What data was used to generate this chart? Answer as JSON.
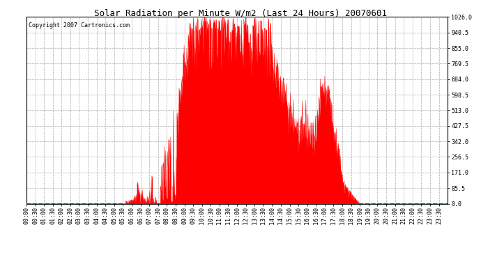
{
  "title": "Solar Radiation per Minute W/m2 (Last 24 Hours) 20070601",
  "copyright_text": "Copyright 2007 Cartronics.com",
  "background_color": "#ffffff",
  "plot_bg_color": "#ffffff",
  "fill_color": "#ff0000",
  "line_color": "#ff0000",
  "y_min": 0.0,
  "y_max": 1026.0,
  "y_ticks": [
    0.0,
    85.5,
    171.0,
    256.5,
    342.0,
    427.5,
    513.0,
    598.5,
    684.0,
    769.5,
    855.0,
    940.5,
    1026.0
  ],
  "n_minutes": 1440,
  "title_fontsize": 9,
  "tick_fontsize": 6,
  "copyright_fontsize": 6
}
